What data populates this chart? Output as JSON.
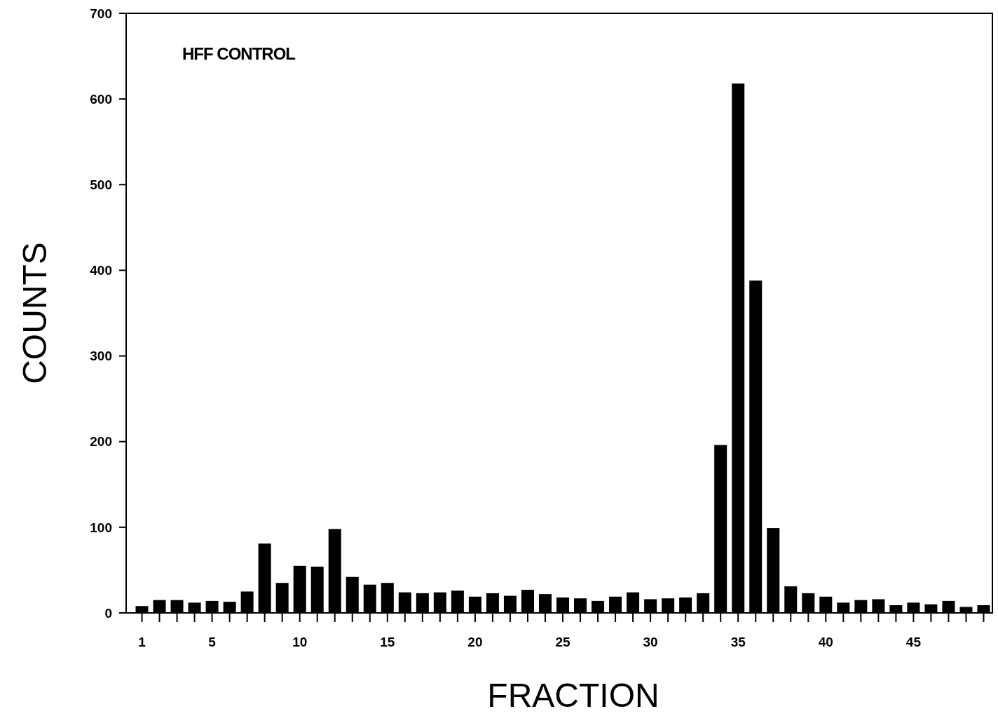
{
  "chart_data": {
    "type": "bar",
    "xlabel": "FRACTION",
    "ylabel": "COUNTS",
    "annotations": [
      "HFF CONTROL"
    ],
    "x": [
      1,
      2,
      3,
      4,
      5,
      6,
      7,
      8,
      9,
      10,
      11,
      12,
      13,
      14,
      15,
      16,
      17,
      18,
      19,
      20,
      21,
      22,
      23,
      24,
      25,
      26,
      27,
      28,
      29,
      30,
      31,
      32,
      33,
      34,
      35,
      36,
      37,
      38,
      39,
      40,
      41,
      42,
      43,
      44,
      45,
      46,
      47,
      48,
      49
    ],
    "values": [
      8,
      15,
      15,
      12,
      14,
      13,
      25,
      81,
      35,
      55,
      54,
      98,
      42,
      33,
      35,
      24,
      23,
      24,
      26,
      19,
      23,
      20,
      27,
      22,
      18,
      17,
      14,
      19,
      24,
      16,
      17,
      18,
      23,
      196,
      618,
      388,
      99,
      31,
      23,
      19,
      12,
      15,
      16,
      9,
      12,
      10,
      14,
      7,
      9
    ],
    "color": "#000000",
    "xlim": [
      0.1,
      49.5
    ],
    "xticks": [
      1,
      {
        "value": 2,
        "label": null
      },
      {
        "value": 3,
        "label": null
      },
      {
        "value": 4,
        "label": null
      },
      5,
      {
        "value": 6,
        "label": null
      },
      {
        "value": 7,
        "label": null
      },
      {
        "value": 8,
        "label": null
      },
      {
        "value": 9,
        "label": null
      },
      10,
      {
        "value": 11,
        "label": null
      },
      {
        "value": 12,
        "label": null
      },
      {
        "value": 13,
        "label": null
      },
      {
        "value": 14,
        "label": null
      },
      15,
      {
        "value": 16,
        "label": null
      },
      {
        "value": 17,
        "label": null
      },
      {
        "value": 18,
        "label": null
      },
      {
        "value": 19,
        "label": null
      },
      20,
      {
        "value": 21,
        "label": null
      },
      {
        "value": 22,
        "label": null
      },
      {
        "value": 23,
        "label": null
      },
      {
        "value": 24,
        "label": null
      },
      25,
      {
        "value": 26,
        "label": null
      },
      {
        "value": 27,
        "label": null
      },
      {
        "value": 28,
        "label": null
      },
      {
        "value": 29,
        "label": null
      },
      30,
      {
        "value": 31,
        "label": null
      },
      {
        "value": 32,
        "label": null
      },
      {
        "value": 33,
        "label": null
      },
      {
        "value": 34,
        "label": null
      },
      35,
      {
        "value": 36,
        "label": null
      },
      {
        "value": 37,
        "label": null
      },
      {
        "value": 38,
        "label": null
      },
      {
        "value": 39,
        "label": null
      },
      40,
      {
        "value": 41,
        "label": null
      },
      {
        "value": 42,
        "label": null
      },
      {
        "value": 43,
        "label": null
      },
      {
        "value": 44,
        "label": null
      },
      45,
      {
        "value": 46,
        "label": null
      },
      {
        "value": 47,
        "label": null
      },
      {
        "value": 48,
        "label": null
      },
      {
        "value": 49,
        "label": null
      }
    ],
    "ylim": [
      0,
      700
    ],
    "yticks": [
      0,
      100,
      200,
      300,
      400,
      500,
      600,
      700
    ],
    "grid": false
  }
}
